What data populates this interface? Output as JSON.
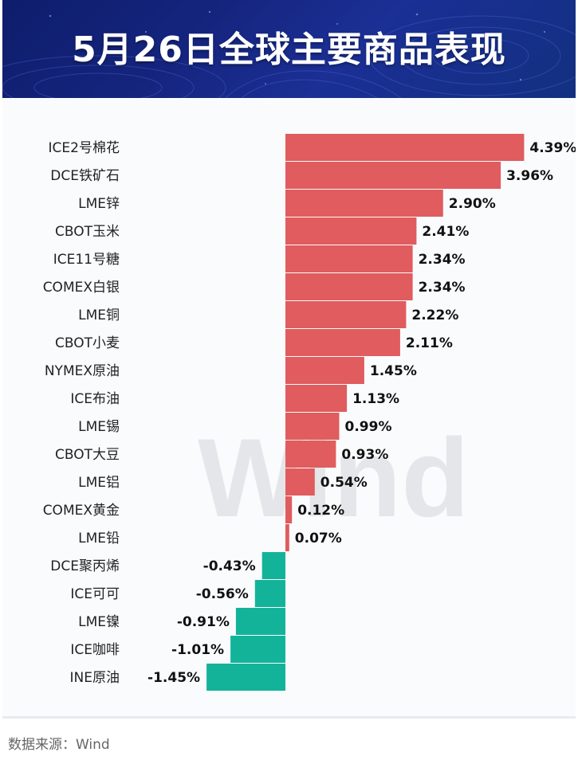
{
  "title": "5月26日全球主要商品表现",
  "source": "数据来源：Wind",
  "watermark": "Wind",
  "colors": {
    "positive": "#e05c5e",
    "negative": "#13b39a",
    "header": "#15257f"
  },
  "chart_data": {
    "type": "bar",
    "orientation": "horizontal",
    "title": "5月26日全球主要商品表现",
    "unit": "%",
    "categories": [
      "ICE2号棉花",
      "DCE铁矿石",
      "LME锌",
      "CBOT玉米",
      "ICE11号糖",
      "COMEX白银",
      "LME铜",
      "CBOT小麦",
      "NYMEX原油",
      "ICE布油",
      "LME锡",
      "CBOT大豆",
      "LME铝",
      "COMEX黄金",
      "LME铅",
      "DCE聚丙烯",
      "ICE可可",
      "LME镍",
      "ICE咖啡",
      "INE原油"
    ],
    "values": [
      4.39,
      3.96,
      2.9,
      2.41,
      2.34,
      2.34,
      2.22,
      2.11,
      1.45,
      1.13,
      0.99,
      0.93,
      0.54,
      0.12,
      0.07,
      -0.43,
      -0.56,
      -0.91,
      -1.01,
      -1.45
    ],
    "labels": [
      "4.39%",
      "3.96%",
      "2.90%",
      "2.41%",
      "2.34%",
      "2.34%",
      "2.22%",
      "2.11%",
      "1.45%",
      "1.13%",
      "0.99%",
      "0.93%",
      "0.54%",
      "0.12%",
      "0.07%",
      "-0.43%",
      "-0.56%",
      "-0.91%",
      "-1.01%",
      "-1.45%"
    ]
  }
}
